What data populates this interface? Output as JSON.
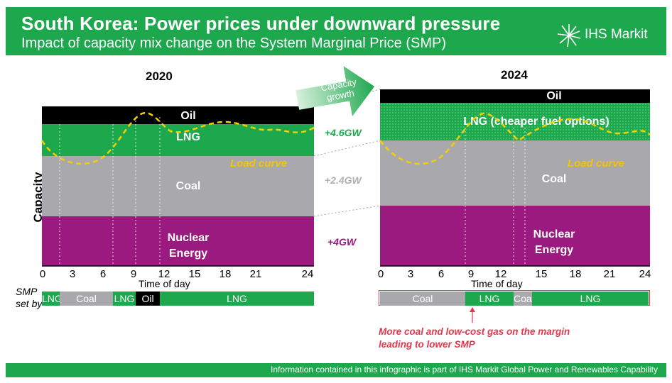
{
  "header": {
    "title": "South Korea: Power prices under downward pressure",
    "subtitle": "Impact of capacity mix change on the System Marginal Price (SMP)",
    "logo_text": "IHS Markit"
  },
  "y_axis_label": "Capacity",
  "x_axis_label": "Time of day",
  "x_ticks": [
    "0",
    "3",
    "6",
    "9",
    "12",
    "15",
    "18",
    "21",
    "24"
  ],
  "load_curve_label": "Load curve",
  "arrow_label": "Capacity growth",
  "charts": {
    "left": {
      "year": "2020",
      "bands": [
        {
          "name": "Oil",
          "color": "#000000"
        },
        {
          "name": "LNG",
          "color": "#1ea84e"
        },
        {
          "name": "Coal",
          "color": "#a9a9ad"
        },
        {
          "name": "Nuclear Energy",
          "color": "#9a1a7f"
        }
      ]
    },
    "right": {
      "year": "2024",
      "bands": [
        {
          "name": "Oil",
          "color": "#000000"
        },
        {
          "name": "LNG (cheaper fuel options)",
          "color": "#1ea84e"
        },
        {
          "name": "Coal",
          "color": "#a9a9ad"
        },
        {
          "name": "Nuclear Energy",
          "color": "#9a1a7f"
        }
      ]
    }
  },
  "deltas": [
    {
      "label": "+4.6GW",
      "color": "#1ea84e"
    },
    {
      "label": "+2.4GW",
      "color": "#b0b0b3"
    },
    {
      "label": "+4GW",
      "color": "#9a1a7f"
    }
  ],
  "smp": {
    "label_line1": "SMP",
    "label_line2": "set by",
    "left_segments": [
      "LNG",
      "Coal",
      "LNG",
      "Oil",
      "LNG"
    ],
    "right_segments": [
      "Coal",
      "LNG",
      "Coal",
      "LNG"
    ]
  },
  "note": {
    "line1": "More coal and low-cost gas on the margin",
    "line2": "leading to lower SMP"
  },
  "footer": "Information contained in this infographic is part of IHS Markit Global Power and Renewables Capability",
  "colors": {
    "brand_green": "#1ea84e",
    "coal_grey": "#a9a9ad",
    "nuclear_purple": "#9a1a7f",
    "load_yellow": "#f5c400",
    "note_red": "#e8364c"
  }
}
